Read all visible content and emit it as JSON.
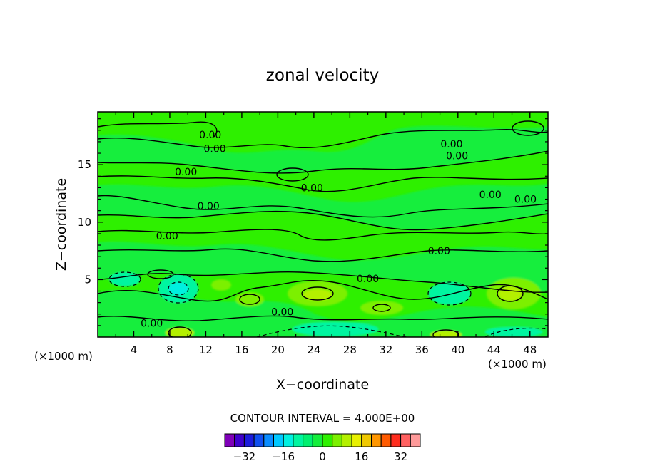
{
  "chart_data": {
    "type": "heatmap",
    "title": "zonal velocity",
    "xlabel": "X−coordinate",
    "ylabel": "Z−coordinate",
    "x_units": "(×1000 m)",
    "y_units": "(×1000 m)",
    "xlim": [
      0,
      50
    ],
    "ylim": [
      0,
      19.6
    ],
    "x_ticks": [
      4,
      8,
      12,
      16,
      20,
      24,
      28,
      32,
      36,
      40,
      44,
      48
    ],
    "y_ticks": [
      5,
      10,
      15
    ],
    "contour_interval_text": "CONTOUR INTERVAL = 4.000E+00",
    "contour_label": "0.00",
    "contour_labels": [
      {
        "text": "0.00",
        "x": 12.5,
        "y": 17.6
      },
      {
        "text": "0.00",
        "x": 13.0,
        "y": 16.4
      },
      {
        "text": "0.00",
        "x": 9.8,
        "y": 14.4
      },
      {
        "text": "0.00",
        "x": 12.3,
        "y": 11.4
      },
      {
        "text": "0.00",
        "x": 23.8,
        "y": 13.0
      },
      {
        "text": "0.00",
        "x": 7.7,
        "y": 8.8
      },
      {
        "text": "0.00",
        "x": 39.3,
        "y": 16.8
      },
      {
        "text": "0.00",
        "x": 39.9,
        "y": 15.8
      },
      {
        "text": "0.00",
        "x": 43.6,
        "y": 12.4
      },
      {
        "text": "0.00",
        "x": 47.5,
        "y": 12.0
      },
      {
        "text": "0.00",
        "x": 37.9,
        "y": 7.5
      },
      {
        "text": "0.00",
        "x": 30.0,
        "y": 5.1
      },
      {
        "text": "0.00",
        "x": 20.5,
        "y": 2.2
      },
      {
        "text": "0.00",
        "x": 6.0,
        "y": 1.2
      }
    ],
    "colorbar": {
      "levels": [
        -36,
        -32,
        -28,
        -24,
        -20,
        -16,
        -12,
        -8,
        -4,
        0,
        4,
        8,
        12,
        16,
        20,
        24,
        28,
        32,
        36
      ],
      "colors": [
        "#7f00b8",
        "#3f00cc",
        "#1c1cdc",
        "#1050f0",
        "#0a8cff",
        "#00c8ff",
        "#00f0e0",
        "#00f5a0",
        "#00f070",
        "#14ee3c",
        "#2ef000",
        "#7cf000",
        "#b4f000",
        "#e8f000",
        "#f0c800",
        "#ff9600",
        "#ff5a00",
        "#ff2d1e",
        "#ff6060",
        "#ff9a9a"
      ],
      "tick_labels": [
        "−32",
        "−16",
        "0",
        "16",
        "32"
      ]
    }
  }
}
